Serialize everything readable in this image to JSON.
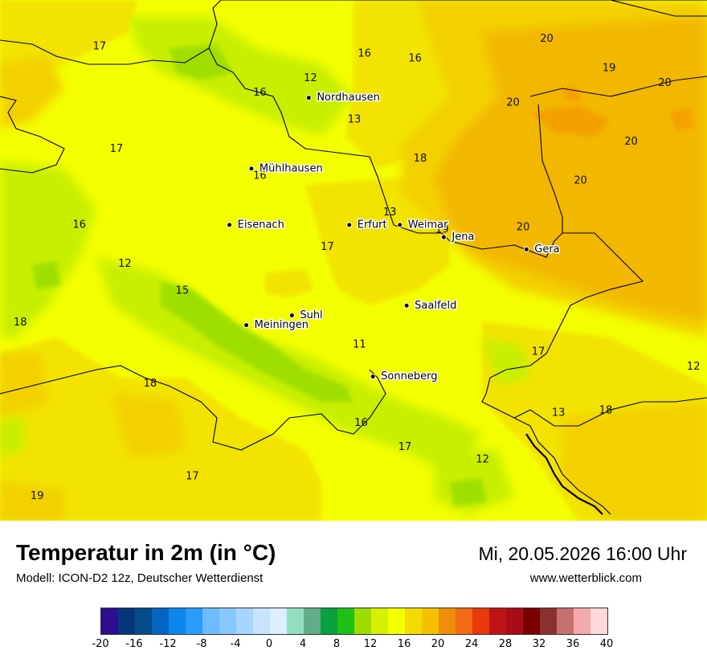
{
  "title": "Temperatur in 2m (in °C)",
  "subtitle": "Modell: ICON-D2 12z, Deutscher Wetterdienst",
  "datetime": "Mi, 20.05.2026 16:00 Uhr",
  "website": "www.wetterblick.com",
  "colors": {
    "c11": "#9fdf00",
    "c12": "#c8ef00",
    "c16": "#f4ff00",
    "c17": "#f2e300",
    "c18": "#f3d000",
    "c20": "#f2b800",
    "c22": "#f4a000"
  },
  "legend": {
    "colors": [
      "#2e0e8f",
      "#06367a",
      "#064b8b",
      "#0564c2",
      "#0b86ec",
      "#2c9cf9",
      "#6dbcff",
      "#89c8ff",
      "#a8d5ff",
      "#c8e3ff",
      "#dceeff",
      "#92dfc0",
      "#5fae88",
      "#0aa03f",
      "#20bf16",
      "#9bdd00",
      "#d5f000",
      "#f4ff00",
      "#f3dd00",
      "#f3c100",
      "#f08e0b",
      "#f26a14",
      "#e83a0b",
      "#c01414",
      "#a80c18",
      "#780000",
      "#8a3030",
      "#c67070",
      "#f2aaaa",
      "#ffd8dc"
    ],
    "ticks": [
      "-20",
      "-16",
      "-12",
      "-8",
      "-4",
      "0",
      "4",
      "8",
      "12",
      "16",
      "20",
      "24",
      "28",
      "32",
      "36",
      "40"
    ]
  },
  "cities": [
    {
      "name": "Nordhausen",
      "lon": 10.79,
      "lat": 51.5
    },
    {
      "name": "Mühlhausen",
      "lon": 10.45,
      "lat": 51.21
    },
    {
      "name": "Eisenach",
      "lon": 10.32,
      "lat": 50.98
    },
    {
      "name": "Erfurt",
      "lon": 11.03,
      "lat": 50.98
    },
    {
      "name": "Weimar",
      "lon": 11.33,
      "lat": 50.98
    },
    {
      "name": "Jena",
      "lon": 11.59,
      "lat": 50.93
    },
    {
      "name": "Gera",
      "lon": 12.08,
      "lat": 50.88
    },
    {
      "name": "Saalfeld",
      "lon": 11.37,
      "lat": 50.65
    },
    {
      "name": "Suhl",
      "lon": 10.69,
      "lat": 50.61
    },
    {
      "name": "Meiningen",
      "lon": 10.42,
      "lat": 50.57
    },
    {
      "name": "Sonneberg",
      "lon": 11.17,
      "lat": 50.36
    }
  ],
  "values": [
    {
      "v": "17",
      "lon": 9.55,
      "lat": 51.71
    },
    {
      "v": "16",
      "lon": 11.12,
      "lat": 51.68
    },
    {
      "v": "16",
      "lon": 11.42,
      "lat": 51.66
    },
    {
      "v": "20",
      "lon": 12.2,
      "lat": 51.74
    },
    {
      "v": "19",
      "lon": 12.57,
      "lat": 51.62
    },
    {
      "v": "20",
      "lon": 12.9,
      "lat": 51.56
    },
    {
      "v": "12",
      "lon": 10.8,
      "lat": 51.58
    },
    {
      "v": "16",
      "lon": 10.5,
      "lat": 51.52
    },
    {
      "v": "20",
      "lon": 12.0,
      "lat": 51.48
    },
    {
      "v": "13",
      "lon": 11.06,
      "lat": 51.41
    },
    {
      "v": "17",
      "lon": 9.65,
      "lat": 51.29
    },
    {
      "v": "18",
      "lon": 11.45,
      "lat": 51.25
    },
    {
      "v": "20",
      "lon": 12.7,
      "lat": 51.32
    },
    {
      "v": "16",
      "lon": 10.5,
      "lat": 51.18
    },
    {
      "v": "20",
      "lon": 12.4,
      "lat": 51.16
    },
    {
      "v": "16",
      "lon": 9.43,
      "lat": 50.98
    },
    {
      "v": "13",
      "lon": 11.27,
      "lat": 51.03
    },
    {
      "v": "19",
      "lon": 11.58,
      "lat": 50.96
    },
    {
      "v": "20",
      "lon": 12.06,
      "lat": 50.97
    },
    {
      "v": "17",
      "lon": 10.9,
      "lat": 50.89
    },
    {
      "v": "12",
      "lon": 9.7,
      "lat": 50.82
    },
    {
      "v": "15",
      "lon": 10.04,
      "lat": 50.71
    },
    {
      "v": "18",
      "lon": 9.08,
      "lat": 50.58
    },
    {
      "v": "11",
      "lon": 11.09,
      "lat": 50.49
    },
    {
      "v": "17",
      "lon": 12.15,
      "lat": 50.46
    },
    {
      "v": "12",
      "lon": 13.07,
      "lat": 50.4
    },
    {
      "v": "18",
      "lon": 9.85,
      "lat": 50.33
    },
    {
      "v": "13",
      "lon": 12.27,
      "lat": 50.21
    },
    {
      "v": "18",
      "lon": 12.55,
      "lat": 50.22
    },
    {
      "v": "16",
      "lon": 11.1,
      "lat": 50.17
    },
    {
      "v": "17",
      "lon": 11.36,
      "lat": 50.07
    },
    {
      "v": "12",
      "lon": 11.82,
      "lat": 50.02
    },
    {
      "v": "17",
      "lon": 10.1,
      "lat": 49.95
    },
    {
      "v": "19",
      "lon": 9.18,
      "lat": 49.87
    }
  ]
}
